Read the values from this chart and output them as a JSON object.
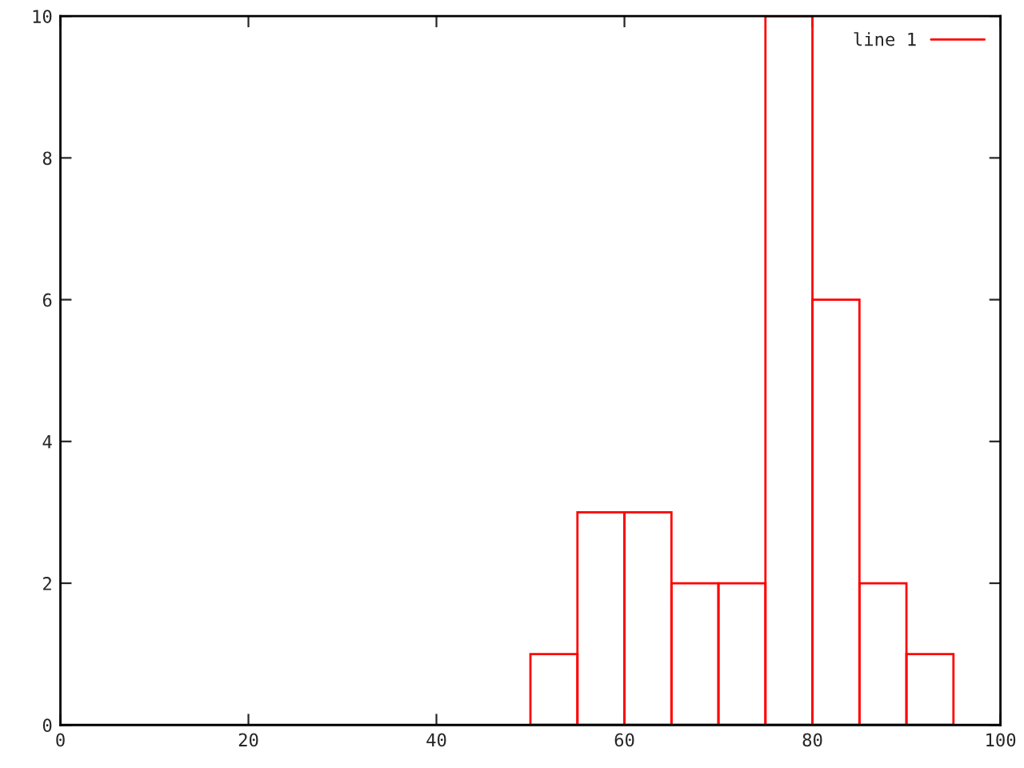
{
  "chart_data": {
    "type": "histogram",
    "bins": [
      50,
      55,
      60,
      65,
      70,
      75,
      80,
      85,
      90,
      95
    ],
    "series": [
      {
        "name": "line 1",
        "color": "#ff0000",
        "values": [
          1,
          3,
          3,
          2,
          2,
          10,
          6,
          2,
          1
        ]
      }
    ],
    "xlim": [
      0,
      100
    ],
    "xticks": [
      0,
      20,
      40,
      60,
      80,
      100
    ],
    "ylim": [
      0,
      10
    ],
    "yticks": [
      0,
      2,
      4,
      6,
      8,
      10
    ],
    "grid": false,
    "legend": "top right"
  }
}
